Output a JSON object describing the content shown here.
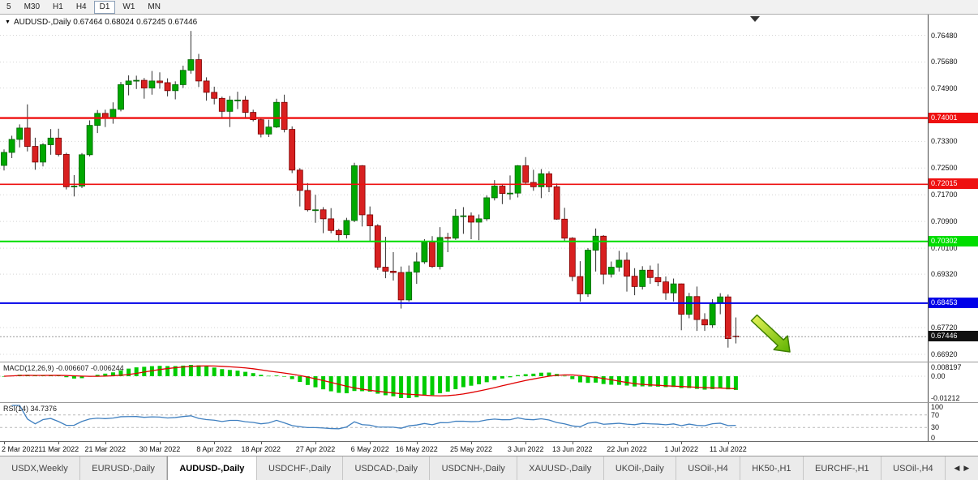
{
  "toolbar": {
    "periods": [
      "5",
      "M30",
      "H1",
      "H4",
      "D1",
      "W1",
      "MN"
    ],
    "active": "D1"
  },
  "icons": {
    "title_marker": "▼"
  },
  "chart": {
    "symbol": "AUDUSD",
    "timeframe": "Daily",
    "title": "AUDUSD-,Daily 0.67464 0.68024 0.67245 0.67446",
    "ohlc": {
      "open": "0.67464",
      "high": "0.68024",
      "low": "0.67245",
      "close": "0.67446"
    },
    "current": {
      "price": 0.67446,
      "label": "0.67446"
    },
    "grid_labels": [
      "0.76480",
      "0.75680",
      "0.74900",
      "0.73300",
      "0.72500",
      "0.71700",
      "0.70900",
      "0.70100",
      "0.69320",
      "0.67720",
      "0.66920"
    ],
    "hlines": [
      {
        "price": 0.74001,
        "label": "0.74001",
        "color": "#ee1010",
        "width": 2.4
      },
      {
        "price": 0.72015,
        "label": "0.72015",
        "color": "#ee1010",
        "width": 1.6
      },
      {
        "price": 0.70302,
        "label": "0.70302",
        "color": "#00dd00",
        "width": 2
      },
      {
        "price": 0.68453,
        "label": "0.68453",
        "color": "#0000e8",
        "width": 2
      }
    ],
    "colors": {
      "up": "#00a800",
      "down": "#d82020",
      "wick": "#303030",
      "grid": "#d4d4d4"
    },
    "annotations": {
      "arrow": {
        "fill_from": "#eaf55a",
        "fill_to": "#5db200",
        "stroke": "#3e7e00"
      },
      "shift_marker_color": "#333333"
    }
  },
  "chart_data": {
    "type": "candlestick",
    "title": "AUDUSD-,Daily",
    "y_range": [
      0.667,
      0.771
    ],
    "x_ticks": [
      {
        "i": 0,
        "label": "2 Mar 2022"
      },
      {
        "i": 7,
        "label": "11 Mar 2022"
      },
      {
        "i": 13,
        "label": "21 Mar 2022"
      },
      {
        "i": 20,
        "label": "30 Mar 2022"
      },
      {
        "i": 27,
        "label": "8 Apr 2022"
      },
      {
        "i": 33,
        "label": "18 Apr 2022"
      },
      {
        "i": 40,
        "label": "27 Apr 2022"
      },
      {
        "i": 47,
        "label": "6 May 2022"
      },
      {
        "i": 53,
        "label": "16 May 2022"
      },
      {
        "i": 60,
        "label": "25 May 2022"
      },
      {
        "i": 67,
        "label": "3 Jun 2022"
      },
      {
        "i": 73,
        "label": "13 Jun 2022"
      },
      {
        "i": 80,
        "label": "22 Jun 2022"
      },
      {
        "i": 87,
        "label": "1 Jul 2022"
      },
      {
        "i": 93,
        "label": "11 Jul 2022"
      }
    ],
    "dates": [
      "2 Mar 2022",
      "3 Mar 2022",
      "4 Mar 2022",
      "7 Mar 2022",
      "8 Mar 2022",
      "9 Mar 2022",
      "10 Mar 2022",
      "11 Mar 2022",
      "14 Mar 2022",
      "15 Mar 2022",
      "16 Mar 2022",
      "17 Mar 2022",
      "18 Mar 2022",
      "21 Mar 2022",
      "22 Mar 2022",
      "23 Mar 2022",
      "24 Mar 2022",
      "25 Mar 2022",
      "28 Mar 2022",
      "29 Mar 2022",
      "30 Mar 2022",
      "31 Mar 2022",
      "1 Apr 2022",
      "4 Apr 2022",
      "5 Apr 2022",
      "6 Apr 2022",
      "7 Apr 2022",
      "8 Apr 2022",
      "11 Apr 2022",
      "12 Apr 2022",
      "13 Apr 2022",
      "14 Apr 2022",
      "15 Apr 2022",
      "18 Apr 2022",
      "19 Apr 2022",
      "20 Apr 2022",
      "21 Apr 2022",
      "22 Apr 2022",
      "25 Apr 2022",
      "26 Apr 2022",
      "27 Apr 2022",
      "28 Apr 2022",
      "29 Apr 2022",
      "2 May 2022",
      "3 May 2022",
      "4 May 2022",
      "5 May 2022",
      "6 May 2022",
      "9 May 2022",
      "10 May 2022",
      "11 May 2022",
      "12 May 2022",
      "13 May 2022",
      "16 May 2022",
      "17 May 2022",
      "18 May 2022",
      "19 May 2022",
      "20 May 2022",
      "23 May 2022",
      "24 May 2022",
      "25 May 2022",
      "26 May 2022",
      "27 May 2022",
      "30 May 2022",
      "31 May 2022",
      "1 Jun 2022",
      "2 Jun 2022",
      "3 Jun 2022",
      "6 Jun 2022",
      "7 Jun 2022",
      "8 Jun 2022",
      "9 Jun 2022",
      "10 Jun 2022",
      "13 Jun 2022",
      "14 Jun 2022",
      "15 Jun 2022",
      "16 Jun 2022",
      "17 Jun 2022",
      "20 Jun 2022",
      "21 Jun 2022",
      "22 Jun 2022",
      "23 Jun 2022",
      "24 Jun 2022",
      "27 Jun 2022",
      "28 Jun 2022",
      "29 Jun 2022",
      "30 Jun 2022",
      "1 Jul 2022",
      "4 Jul 2022",
      "5 Jul 2022",
      "6 Jul 2022",
      "7 Jul 2022",
      "8 Jul 2022",
      "11 Jul 2022",
      "12 Jul 2022"
    ],
    "candles": [
      [
        0.7258,
        0.7306,
        0.7243,
        0.7297
      ],
      [
        0.7297,
        0.7347,
        0.728,
        0.7336
      ],
      [
        0.7336,
        0.7381,
        0.7312,
        0.737
      ],
      [
        0.737,
        0.7441,
        0.73,
        0.7315
      ],
      [
        0.7315,
        0.7341,
        0.7245,
        0.7268
      ],
      [
        0.7268,
        0.7325,
        0.7255,
        0.732
      ],
      [
        0.732,
        0.7367,
        0.729,
        0.734
      ],
      [
        0.734,
        0.7368,
        0.7285,
        0.7291
      ],
      [
        0.7291,
        0.7296,
        0.7186,
        0.7194
      ],
      [
        0.7194,
        0.7229,
        0.7165,
        0.7196
      ],
      [
        0.7196,
        0.7295,
        0.719,
        0.729
      ],
      [
        0.729,
        0.7393,
        0.7285,
        0.7378
      ],
      [
        0.7378,
        0.7424,
        0.7355,
        0.7414
      ],
      [
        0.7414,
        0.7425,
        0.7373,
        0.7399
      ],
      [
        0.7399,
        0.7447,
        0.7383,
        0.7426
      ],
      [
        0.7426,
        0.7508,
        0.742,
        0.75
      ],
      [
        0.75,
        0.7528,
        0.7468,
        0.7511
      ],
      [
        0.7511,
        0.7527,
        0.7487,
        0.7513
      ],
      [
        0.7513,
        0.752,
        0.7458,
        0.749
      ],
      [
        0.749,
        0.7541,
        0.747,
        0.7511
      ],
      [
        0.7511,
        0.7537,
        0.7488,
        0.7506
      ],
      [
        0.7506,
        0.7519,
        0.7465,
        0.7482
      ],
      [
        0.7482,
        0.751,
        0.7456,
        0.75
      ],
      [
        0.75,
        0.7557,
        0.749,
        0.7543
      ],
      [
        0.7543,
        0.7661,
        0.7533,
        0.7575
      ],
      [
        0.7575,
        0.7592,
        0.7493,
        0.7511
      ],
      [
        0.7511,
        0.7522,
        0.7452,
        0.7477
      ],
      [
        0.7477,
        0.7494,
        0.7441,
        0.7459
      ],
      [
        0.7459,
        0.7464,
        0.7399,
        0.742
      ],
      [
        0.742,
        0.7466,
        0.7373,
        0.7454
      ],
      [
        0.7454,
        0.7479,
        0.7427,
        0.7454
      ],
      [
        0.7454,
        0.7466,
        0.7398,
        0.7417
      ],
      [
        0.7417,
        0.7425,
        0.739,
        0.7395
      ],
      [
        0.7395,
        0.74,
        0.7342,
        0.7352
      ],
      [
        0.7352,
        0.7395,
        0.7343,
        0.7373
      ],
      [
        0.7373,
        0.7458,
        0.737,
        0.7447
      ],
      [
        0.7447,
        0.747,
        0.7357,
        0.7366
      ],
      [
        0.7366,
        0.7375,
        0.7235,
        0.7244
      ],
      [
        0.7244,
        0.725,
        0.7135,
        0.7183
      ],
      [
        0.7183,
        0.7205,
        0.712,
        0.7125
      ],
      [
        0.7125,
        0.717,
        0.7086,
        0.7125
      ],
      [
        0.7125,
        0.7133,
        0.7055,
        0.7098
      ],
      [
        0.7098,
        0.713,
        0.7055,
        0.7063
      ],
      [
        0.7063,
        0.7068,
        0.7028,
        0.705
      ],
      [
        0.705,
        0.7101,
        0.7039,
        0.7093
      ],
      [
        0.7093,
        0.7266,
        0.7088,
        0.7257
      ],
      [
        0.7257,
        0.7259,
        0.7075,
        0.711
      ],
      [
        0.711,
        0.7135,
        0.703,
        0.7077
      ],
      [
        0.7077,
        0.7082,
        0.6945,
        0.6953
      ],
      [
        0.6953,
        0.7044,
        0.692,
        0.6941
      ],
      [
        0.6941,
        0.6998,
        0.6913,
        0.6937
      ],
      [
        0.6937,
        0.6955,
        0.6829,
        0.6855
      ],
      [
        0.6855,
        0.6958,
        0.685,
        0.6938
      ],
      [
        0.6938,
        0.6997,
        0.6903,
        0.6969
      ],
      [
        0.6969,
        0.7037,
        0.6963,
        0.7028
      ],
      [
        0.7028,
        0.7046,
        0.6951,
        0.6955
      ],
      [
        0.6955,
        0.7073,
        0.6946,
        0.7042
      ],
      [
        0.7042,
        0.7056,
        0.6998,
        0.704
      ],
      [
        0.704,
        0.7127,
        0.7035,
        0.7106
      ],
      [
        0.7106,
        0.7133,
        0.7053,
        0.7107
      ],
      [
        0.7107,
        0.7117,
        0.7037,
        0.7088
      ],
      [
        0.7088,
        0.7111,
        0.7034,
        0.7098
      ],
      [
        0.7098,
        0.7168,
        0.7092,
        0.7161
      ],
      [
        0.7161,
        0.7214,
        0.7153,
        0.7196
      ],
      [
        0.7196,
        0.7203,
        0.7142,
        0.7174
      ],
      [
        0.7174,
        0.7228,
        0.7155,
        0.7175
      ],
      [
        0.7175,
        0.7259,
        0.7162,
        0.7257
      ],
      [
        0.7257,
        0.7283,
        0.72,
        0.7207
      ],
      [
        0.7207,
        0.7245,
        0.7182,
        0.7194
      ],
      [
        0.7194,
        0.7247,
        0.716,
        0.7233
      ],
      [
        0.7233,
        0.724,
        0.7178,
        0.7194
      ],
      [
        0.7194,
        0.7204,
        0.7095,
        0.7097
      ],
      [
        0.7097,
        0.7131,
        0.7031,
        0.704
      ],
      [
        0.704,
        0.7043,
        0.6911,
        0.6925
      ],
      [
        0.6925,
        0.6971,
        0.685,
        0.6873
      ],
      [
        0.6873,
        0.701,
        0.6864,
        0.7004
      ],
      [
        0.7004,
        0.7069,
        0.694,
        0.7046
      ],
      [
        0.7046,
        0.7049,
        0.6902,
        0.6932
      ],
      [
        0.6932,
        0.697,
        0.6922,
        0.6953
      ],
      [
        0.6953,
        0.7002,
        0.694,
        0.6974
      ],
      [
        0.6974,
        0.6997,
        0.688,
        0.6926
      ],
      [
        0.6926,
        0.695,
        0.6869,
        0.6895
      ],
      [
        0.6895,
        0.6956,
        0.6886,
        0.6944
      ],
      [
        0.6944,
        0.6958,
        0.6903,
        0.6922
      ],
      [
        0.6922,
        0.6964,
        0.6896,
        0.6909
      ],
      [
        0.6909,
        0.6925,
        0.6855,
        0.6876
      ],
      [
        0.6876,
        0.6919,
        0.685,
        0.6903
      ],
      [
        0.6903,
        0.6904,
        0.6764,
        0.6812
      ],
      [
        0.6812,
        0.6876,
        0.68,
        0.6865
      ],
      [
        0.6865,
        0.6895,
        0.6762,
        0.6796
      ],
      [
        0.6796,
        0.6815,
        0.6762,
        0.678
      ],
      [
        0.678,
        0.6857,
        0.6771,
        0.6845
      ],
      [
        0.6845,
        0.6875,
        0.6812,
        0.6864
      ],
      [
        0.6864,
        0.6871,
        0.6712,
        0.6739
      ],
      [
        0.67464,
        0.68024,
        0.67245,
        0.67446
      ]
    ]
  },
  "macd": {
    "label": "MACD(12,26,9) -0.006607 -0.006244",
    "macd_value": -0.006607,
    "signal_value": -0.006244,
    "axis_labels": [
      "0.008197",
      "0.00",
      "-0.01212"
    ],
    "colors": {
      "histogram": "#00cc00",
      "signal": "#e00000"
    }
  },
  "rsi": {
    "label": "RSI(14) 34.7376",
    "value": 34.7376,
    "period": 14,
    "levels": [
      70,
      30
    ],
    "axis_labels": [
      "100",
      "70",
      "30",
      "0"
    ],
    "color": "#4080c0"
  },
  "tabs": {
    "items": [
      "USDX,Weekly",
      "EURUSD-,Daily",
      "AUDUSD-,Daily",
      "USDCHF-,Daily",
      "USDCAD-,Daily",
      "USDCNH-,Daily",
      "XAUUSD-,Daily",
      "UKOil-,Daily",
      "USOil-,H4",
      "HK50-,H1",
      "EURCHF-,H1",
      "USOil-,H4"
    ],
    "active_index": 2,
    "scroll_left": "◀",
    "scroll_right": "▶"
  }
}
